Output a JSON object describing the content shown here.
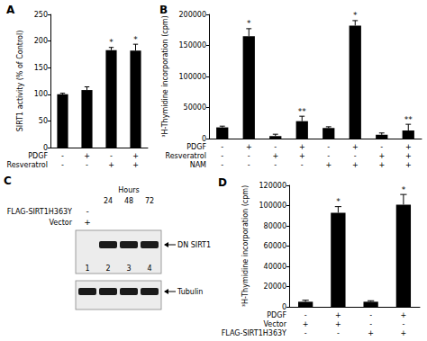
{
  "chart_data": [
    {
      "type": "bar",
      "title": "A",
      "y_label": "SIRT1 activity (% of Control)",
      "categories": [
        "-\n-",
        "+\n-",
        "-\n+",
        "+\n+"
      ],
      "row_labels": [
        "PDGF",
        "Resveratrol"
      ],
      "values": [
        100,
        108,
        183,
        182
      ],
      "errors": [
        2,
        6,
        5,
        12
      ],
      "significance": [
        null,
        null,
        "*",
        "*"
      ],
      "color": "#000000",
      "ylim": [
        0,
        250
      ],
      "yticks": [
        0,
        50,
        100,
        150,
        200,
        250
      ],
      "grid": false
    },
    {
      "type": "bar",
      "title": "B",
      "y_label": "³H-Thymidine incorporation (cpm)",
      "categories": [
        "-\n-\n-",
        "+\n-\n-",
        "-\n+\n-",
        "+\n+\n-",
        "-\n-\n+",
        "+\n-\n+",
        "-\n+\n+",
        "+\n+\n+"
      ],
      "row_labels": [
        "PDGF",
        "Resveratrol",
        "NAM"
      ],
      "values": [
        18000,
        165000,
        4000,
        28000,
        17000,
        182000,
        6000,
        13000
      ],
      "errors": [
        2000,
        12000,
        3000,
        8000,
        2000,
        8000,
        3000,
        10000
      ],
      "significance": [
        null,
        "*",
        null,
        "**",
        null,
        "*",
        null,
        "**"
      ],
      "color": "#000000",
      "ylim": [
        0,
        200000
      ],
      "yticks": [
        0,
        50000,
        100000,
        150000,
        200000
      ],
      "grid": false
    },
    {
      "type": "bar",
      "title": "D",
      "y_label": "³H-Thymidine incorporation (cpm)",
      "categories": [
        "-\n+\n-",
        "+\n+\n-",
        "-\n-\n+",
        "+\n-\n+"
      ],
      "row_labels": [
        "PDGF",
        "Vector",
        "FLAG-SIRT1H363Y"
      ],
      "values": [
        5000,
        93000,
        5000,
        101000
      ],
      "errors": [
        1500,
        6000,
        1000,
        10000
      ],
      "significance": [
        null,
        "*",
        null,
        "*"
      ],
      "color": "#000000",
      "ylim": [
        0,
        120000
      ],
      "yticks": [
        0,
        20000,
        40000,
        60000,
        80000,
        100000,
        120000
      ],
      "grid": false
    }
  ],
  "blot": {
    "title": "C",
    "header": "Hours",
    "hours": [
      null,
      "24",
      "48",
      "72"
    ],
    "rows": [
      {
        "label": "FLAG-SIRT1H363Y",
        "values": [
          "-",
          null,
          null,
          null
        ]
      },
      {
        "label": "Vector",
        "values": [
          "+",
          null,
          null,
          null
        ]
      }
    ],
    "lanes": [
      "1",
      "2",
      "3",
      "4"
    ],
    "blots": [
      {
        "label": "DN SIRT1",
        "bands": [
          false,
          true,
          true,
          true
        ]
      },
      {
        "label": "Tubulin",
        "bands": [
          true,
          true,
          true,
          true
        ]
      }
    ]
  }
}
